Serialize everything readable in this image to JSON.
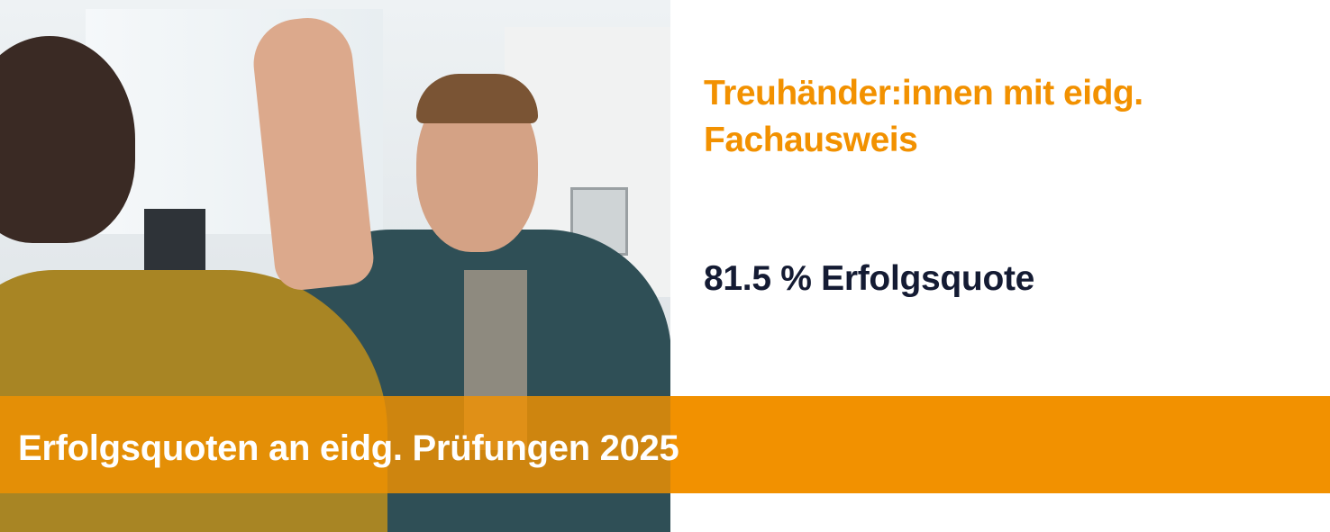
{
  "photo": {
    "description_icon": "photo-two-colleagues-high-five"
  },
  "heading": {
    "line1": "Treuhänder:innen mit eidg.",
    "line2": "Fachausweis"
  },
  "success_rate": "81.5 % Erfolgsquote",
  "band": {
    "title": "Erfolgsquoten an eidg. Prüfungen 2025"
  },
  "colors": {
    "accent": "#f29100",
    "text_dark": "#141b33",
    "background": "#ffffff"
  }
}
